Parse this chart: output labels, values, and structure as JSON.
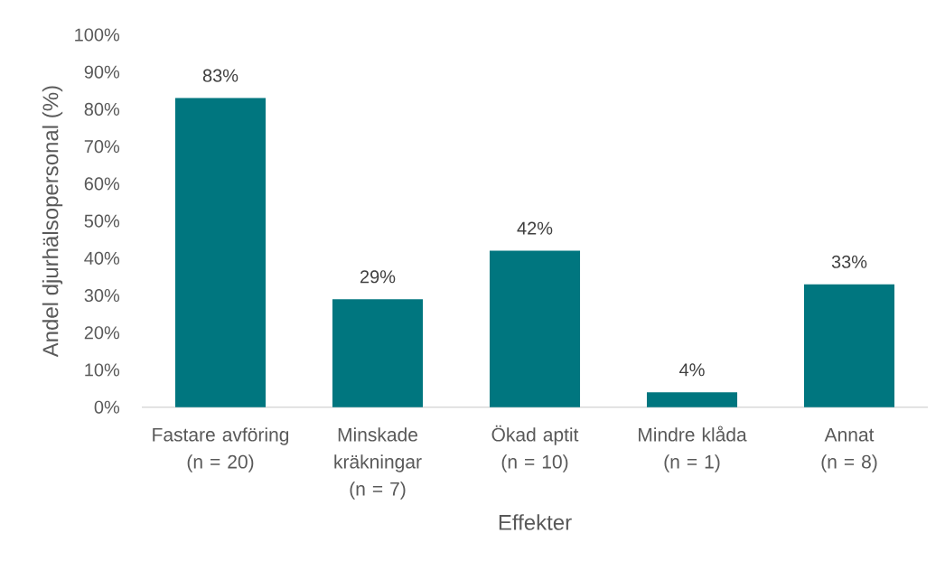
{
  "chart_data": {
    "type": "bar",
    "xlabel": "Effekter",
    "ylabel": "Andel djurhälsopersonal (%)",
    "categories": [
      "Fastare avföring\n(n = 20)",
      "Minskade kräkningar\n(n = 7)",
      "Ökad aptit\n(n = 10)",
      "Mindre klåda\n(n = 1)",
      "Annat\n(n = 8)"
    ],
    "values": [
      83,
      29,
      42,
      4,
      33
    ],
    "value_labels": [
      "83%",
      "29%",
      "42%",
      "4%",
      "33%"
    ],
    "color": "#00767f",
    "ylim": [
      0,
      100
    ],
    "yticks": [
      {
        "value": 0,
        "label": "0%"
      },
      {
        "value": 10,
        "label": "10%"
      },
      {
        "value": 20,
        "label": "20%"
      },
      {
        "value": 30,
        "label": "30%"
      },
      {
        "value": 40,
        "label": "40%"
      },
      {
        "value": 50,
        "label": "50%"
      },
      {
        "value": 60,
        "label": "60%"
      },
      {
        "value": 70,
        "label": "70%"
      },
      {
        "value": 80,
        "label": "80%"
      },
      {
        "value": 90,
        "label": "90%"
      },
      {
        "value": 100,
        "label": "100%"
      }
    ]
  }
}
